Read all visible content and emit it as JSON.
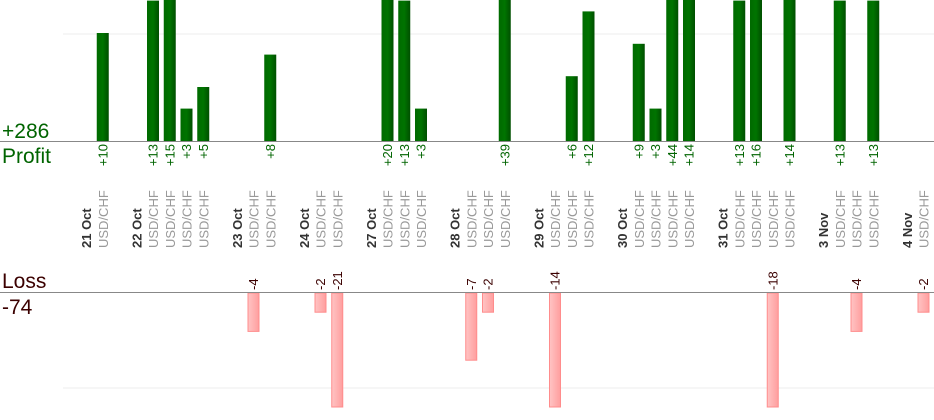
{
  "chart_data": {
    "type": "bar",
    "profit_label": "Profit",
    "profit_total": "+286",
    "loss_label": "Loss",
    "loss_total": "-74",
    "grid": true,
    "colors": {
      "profit": "#006400",
      "loss": "#ffb0b0",
      "loss_border": "#ff8c8c",
      "profit_text": "#006400",
      "loss_text": "#3b0000"
    },
    "days": [
      {
        "date": "21 Oct",
        "trades": [
          {
            "pair": "USD/CHF",
            "value": 10
          }
        ]
      },
      {
        "date": "22 Oct",
        "trades": [
          {
            "pair": "USD/CHF",
            "value": 13
          },
          {
            "pair": "USD/CHF",
            "value": 15
          },
          {
            "pair": "USD/CHF",
            "value": 3
          },
          {
            "pair": "USD/CHF",
            "value": 5
          }
        ]
      },
      {
        "date": "23 Oct",
        "trades": [
          {
            "pair": "USD/CHF",
            "value": -4
          },
          {
            "pair": "USD/CHF",
            "value": 8
          }
        ]
      },
      {
        "date": "24 Oct",
        "trades": [
          {
            "pair": "USD/CHF",
            "value": -2
          },
          {
            "pair": "USD/CHF",
            "value": -21
          }
        ]
      },
      {
        "date": "27 Oct",
        "trades": [
          {
            "pair": "USD/CHF",
            "value": 20
          },
          {
            "pair": "USD/CHF",
            "value": 13
          },
          {
            "pair": "USD/CHF",
            "value": 3
          }
        ]
      },
      {
        "date": "28 Oct",
        "trades": [
          {
            "pair": "USD/CHF",
            "value": -7
          },
          {
            "pair": "USD/CHF",
            "value": -2
          },
          {
            "pair": "USD/CHF",
            "value": 39
          }
        ]
      },
      {
        "date": "29 Oct",
        "trades": [
          {
            "pair": "USD/CHF",
            "value": -14
          },
          {
            "pair": "USD/CHF",
            "value": 6
          },
          {
            "pair": "USD/CHF",
            "value": 12
          }
        ]
      },
      {
        "date": "30 Oct",
        "trades": [
          {
            "pair": "USD/CHF",
            "value": 9
          },
          {
            "pair": "USD/CHF",
            "value": 3
          },
          {
            "pair": "USD/CHF",
            "value": 44
          },
          {
            "pair": "USD/CHF",
            "value": 14
          }
        ]
      },
      {
        "date": "31 Oct",
        "trades": [
          {
            "pair": "USD/CHF",
            "value": 13
          },
          {
            "pair": "USD/CHF",
            "value": 16
          },
          {
            "pair": "USD/CHF",
            "value": -18
          },
          {
            "pair": "USD/CHF",
            "value": 14
          }
        ]
      },
      {
        "date": "3 Nov",
        "trades": [
          {
            "pair": "USD/CHF",
            "value": 13
          },
          {
            "pair": "USD/CHF",
            "value": -4
          },
          {
            "pair": "USD/CHF",
            "value": 13
          }
        ]
      },
      {
        "date": "4 Nov",
        "trades": [
          {
            "pair": "USD/CHF",
            "value": -2
          }
        ]
      }
    ]
  }
}
